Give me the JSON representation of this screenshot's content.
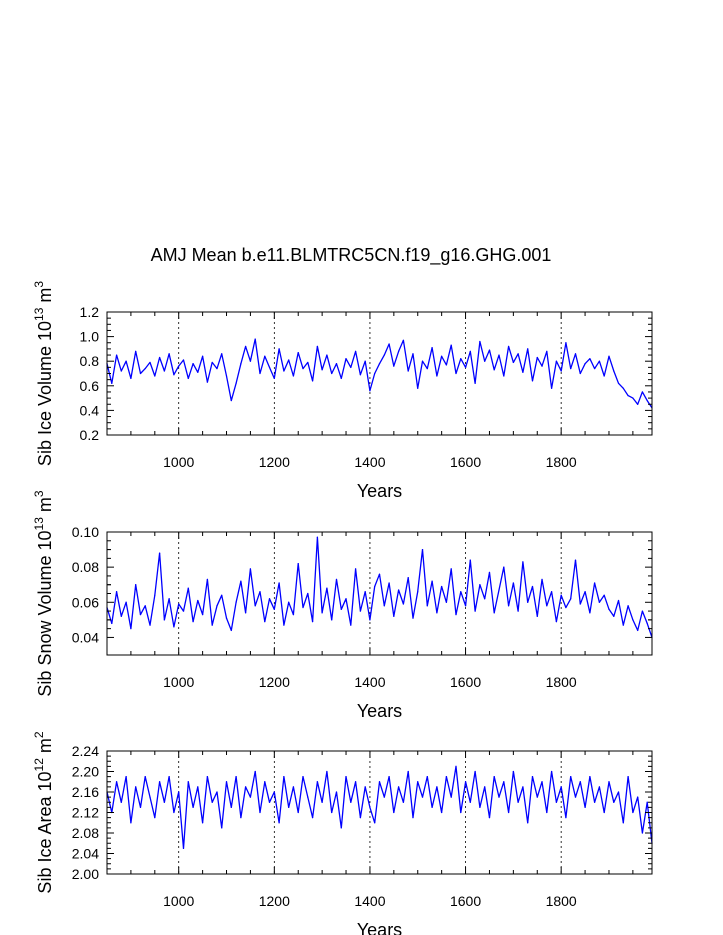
{
  "figure": {
    "title": "AMJ Mean b.e11.BLMTRC5CN.f19_g16.GHG.001"
  },
  "chart_data": [
    {
      "type": "line",
      "ylabel_main": "Sib Ice Volume 10",
      "ylabel_exp": "13",
      "ylabel_unit": " m",
      "ylabel_unit_exp": "3",
      "xlabel": "Years",
      "xlim": [
        850,
        1990
      ],
      "ylim": [
        0.2,
        1.2
      ],
      "yticks": [
        "0.2",
        "0.4",
        "0.6",
        "0.8",
        "1.0",
        "1.2"
      ],
      "ytick_values": [
        0.2,
        0.4,
        0.6,
        0.8,
        1.0,
        1.2
      ],
      "xticks": [
        "1000",
        "1200",
        "1400",
        "1600",
        "1800"
      ],
      "xtick_values": [
        1000,
        1200,
        1400,
        1600,
        1800
      ],
      "grid_x": true,
      "line_color": "#0000ff",
      "series": [
        {
          "x": [
            850,
            860,
            870,
            880,
            890,
            900,
            910,
            920,
            930,
            940,
            950,
            960,
            970,
            980,
            990,
            1000,
            1010,
            1020,
            1030,
            1040,
            1050,
            1060,
            1070,
            1080,
            1090,
            1100,
            1110,
            1120,
            1130,
            1140,
            1150,
            1160,
            1170,
            1180,
            1190,
            1200,
            1210,
            1220,
            1230,
            1240,
            1250,
            1260,
            1270,
            1280,
            1290,
            1300,
            1310,
            1320,
            1330,
            1340,
            1350,
            1360,
            1370,
            1380,
            1390,
            1400,
            1410,
            1420,
            1430,
            1440,
            1450,
            1460,
            1470,
            1480,
            1490,
            1500,
            1510,
            1520,
            1530,
            1540,
            1550,
            1560,
            1570,
            1580,
            1590,
            1600,
            1610,
            1620,
            1630,
            1640,
            1650,
            1660,
            1670,
            1680,
            1690,
            1700,
            1710,
            1720,
            1730,
            1740,
            1750,
            1760,
            1770,
            1780,
            1790,
            1800,
            1810,
            1820,
            1830,
            1840,
            1850,
            1860,
            1870,
            1880,
            1890,
            1900,
            1910,
            1920,
            1930,
            1940,
            1950,
            1960,
            1970,
            1980,
            1990
          ],
          "y": [
            0.78,
            0.62,
            0.85,
            0.72,
            0.8,
            0.66,
            0.88,
            0.7,
            0.74,
            0.79,
            0.68,
            0.83,
            0.72,
            0.86,
            0.69,
            0.76,
            0.81,
            0.66,
            0.78,
            0.71,
            0.84,
            0.63,
            0.79,
            0.74,
            0.86,
            0.68,
            0.48,
            0.62,
            0.78,
            0.92,
            0.8,
            0.98,
            0.7,
            0.84,
            0.75,
            0.66,
            0.9,
            0.72,
            0.81,
            0.68,
            0.87,
            0.74,
            0.79,
            0.64,
            0.92,
            0.73,
            0.85,
            0.7,
            0.78,
            0.66,
            0.82,
            0.75,
            0.88,
            0.69,
            0.8,
            0.56,
            0.7,
            0.78,
            0.85,
            0.94,
            0.76,
            0.88,
            0.97,
            0.72,
            0.86,
            0.58,
            0.8,
            0.74,
            0.91,
            0.68,
            0.84,
            0.77,
            0.93,
            0.7,
            0.82,
            0.75,
            0.88,
            0.62,
            0.96,
            0.8,
            0.89,
            0.73,
            0.85,
            0.68,
            0.92,
            0.79,
            0.86,
            0.71,
            0.9,
            0.64,
            0.83,
            0.76,
            0.88,
            0.58,
            0.8,
            0.72,
            0.95,
            0.74,
            0.86,
            0.7,
            0.78,
            0.82,
            0.74,
            0.8,
            0.68,
            0.84,
            0.72,
            0.62,
            0.58,
            0.52,
            0.5,
            0.45,
            0.55,
            0.48,
            0.42
          ]
        }
      ]
    },
    {
      "type": "line",
      "ylabel_main": "Sib Snow Volume 10",
      "ylabel_exp": "13",
      "ylabel_unit": " m",
      "ylabel_unit_exp": "3",
      "xlabel": "Years",
      "xlim": [
        850,
        1990
      ],
      "ylim": [
        0.03,
        0.1
      ],
      "yticks": [
        "0.04",
        "0.06",
        "0.08",
        "0.10"
      ],
      "ytick_values": [
        0.04,
        0.06,
        0.08,
        0.1
      ],
      "minor_yticks": [
        0.03,
        0.05,
        0.07,
        0.09
      ],
      "xticks": [
        "1000",
        "1200",
        "1400",
        "1600",
        "1800"
      ],
      "xtick_values": [
        1000,
        1200,
        1400,
        1600,
        1800
      ],
      "grid_x": true,
      "line_color": "#0000ff",
      "series": [
        {
          "x": [
            850,
            860,
            870,
            880,
            890,
            900,
            910,
            920,
            930,
            940,
            950,
            960,
            970,
            980,
            990,
            1000,
            1010,
            1020,
            1030,
            1040,
            1050,
            1060,
            1070,
            1080,
            1090,
            1100,
            1110,
            1120,
            1130,
            1140,
            1150,
            1160,
            1170,
            1180,
            1190,
            1200,
            1210,
            1220,
            1230,
            1240,
            1250,
            1260,
            1270,
            1280,
            1290,
            1300,
            1310,
            1320,
            1330,
            1340,
            1350,
            1360,
            1370,
            1380,
            1390,
            1400,
            1410,
            1420,
            1430,
            1440,
            1450,
            1460,
            1470,
            1480,
            1490,
            1500,
            1510,
            1520,
            1530,
            1540,
            1550,
            1560,
            1570,
            1580,
            1590,
            1600,
            1610,
            1620,
            1630,
            1640,
            1650,
            1660,
            1670,
            1680,
            1690,
            1700,
            1710,
            1720,
            1730,
            1740,
            1750,
            1760,
            1770,
            1780,
            1790,
            1800,
            1810,
            1820,
            1830,
            1840,
            1850,
            1860,
            1870,
            1880,
            1890,
            1900,
            1910,
            1920,
            1930,
            1940,
            1950,
            1960,
            1970,
            1980,
            1990
          ],
          "y": [
            0.057,
            0.048,
            0.066,
            0.052,
            0.06,
            0.045,
            0.07,
            0.053,
            0.058,
            0.047,
            0.064,
            0.088,
            0.05,
            0.062,
            0.046,
            0.059,
            0.055,
            0.068,
            0.049,
            0.061,
            0.053,
            0.073,
            0.047,
            0.058,
            0.064,
            0.051,
            0.044,
            0.06,
            0.072,
            0.054,
            0.079,
            0.058,
            0.066,
            0.049,
            0.062,
            0.056,
            0.071,
            0.047,
            0.06,
            0.053,
            0.082,
            0.057,
            0.065,
            0.049,
            0.097,
            0.054,
            0.068,
            0.05,
            0.073,
            0.056,
            0.062,
            0.047,
            0.079,
            0.055,
            0.066,
            0.05,
            0.069,
            0.076,
            0.058,
            0.071,
            0.052,
            0.067,
            0.059,
            0.074,
            0.051,
            0.066,
            0.09,
            0.058,
            0.072,
            0.054,
            0.069,
            0.06,
            0.079,
            0.053,
            0.066,
            0.058,
            0.084,
            0.055,
            0.07,
            0.062,
            0.077,
            0.054,
            0.067,
            0.08,
            0.058,
            0.071,
            0.055,
            0.083,
            0.06,
            0.069,
            0.052,
            0.073,
            0.058,
            0.066,
            0.049,
            0.064,
            0.057,
            0.062,
            0.084,
            0.059,
            0.066,
            0.054,
            0.071,
            0.06,
            0.064,
            0.056,
            0.052,
            0.061,
            0.047,
            0.058,
            0.05,
            0.044,
            0.055,
            0.048,
            0.04
          ]
        }
      ]
    },
    {
      "type": "line",
      "ylabel_main": "Sib Ice Area 10",
      "ylabel_exp": "12",
      "ylabel_unit": " m",
      "ylabel_unit_exp": "2",
      "xlabel": "Years",
      "xlim": [
        850,
        1990
      ],
      "ylim": [
        2.0,
        2.24
      ],
      "yticks": [
        "2.00",
        "2.04",
        "2.08",
        "2.12",
        "2.16",
        "2.20",
        "2.24"
      ],
      "ytick_values": [
        2.0,
        2.04,
        2.08,
        2.12,
        2.16,
        2.2,
        2.24
      ],
      "xticks": [
        "1000",
        "1200",
        "1400",
        "1600",
        "1800"
      ],
      "xtick_values": [
        1000,
        1200,
        1400,
        1600,
        1800
      ],
      "grid_x": true,
      "line_color": "#0000ff",
      "series": [
        {
          "x": [
            850,
            860,
            870,
            880,
            890,
            900,
            910,
            920,
            930,
            940,
            950,
            960,
            970,
            980,
            990,
            1000,
            1010,
            1020,
            1030,
            1040,
            1050,
            1060,
            1070,
            1080,
            1090,
            1100,
            1110,
            1120,
            1130,
            1140,
            1150,
            1160,
            1170,
            1180,
            1190,
            1200,
            1210,
            1220,
            1230,
            1240,
            1250,
            1260,
            1270,
            1280,
            1290,
            1300,
            1310,
            1320,
            1330,
            1340,
            1350,
            1360,
            1370,
            1380,
            1390,
            1400,
            1410,
            1420,
            1430,
            1440,
            1450,
            1460,
            1470,
            1480,
            1490,
            1500,
            1510,
            1520,
            1530,
            1540,
            1550,
            1560,
            1570,
            1580,
            1590,
            1600,
            1610,
            1620,
            1630,
            1640,
            1650,
            1660,
            1670,
            1680,
            1690,
            1700,
            1710,
            1720,
            1730,
            1740,
            1750,
            1760,
            1770,
            1780,
            1790,
            1800,
            1810,
            1820,
            1830,
            1840,
            1850,
            1860,
            1870,
            1880,
            1890,
            1900,
            1910,
            1920,
            1930,
            1940,
            1950,
            1960,
            1970,
            1980,
            1990
          ],
          "y": [
            2.16,
            2.12,
            2.18,
            2.14,
            2.19,
            2.1,
            2.17,
            2.13,
            2.19,
            2.15,
            2.11,
            2.18,
            2.14,
            2.19,
            2.12,
            2.16,
            2.05,
            2.18,
            2.13,
            2.17,
            2.1,
            2.19,
            2.14,
            2.16,
            2.09,
            2.18,
            2.13,
            2.19,
            2.11,
            2.17,
            2.15,
            2.2,
            2.12,
            2.18,
            2.14,
            2.16,
            2.1,
            2.19,
            2.13,
            2.17,
            2.12,
            2.19,
            2.15,
            2.11,
            2.18,
            2.14,
            2.2,
            2.12,
            2.16,
            2.09,
            2.19,
            2.14,
            2.18,
            2.11,
            2.17,
            2.13,
            2.1,
            2.18,
            2.15,
            2.19,
            2.12,
            2.17,
            2.14,
            2.2,
            2.11,
            2.18,
            2.15,
            2.19,
            2.13,
            2.17,
            2.12,
            2.19,
            2.15,
            2.21,
            2.12,
            2.18,
            2.14,
            2.2,
            2.13,
            2.17,
            2.11,
            2.19,
            2.15,
            2.18,
            2.12,
            2.2,
            2.14,
            2.17,
            2.1,
            2.19,
            2.15,
            2.18,
            2.12,
            2.2,
            2.14,
            2.17,
            2.11,
            2.19,
            2.15,
            2.18,
            2.13,
            2.19,
            2.14,
            2.17,
            2.12,
            2.18,
            2.14,
            2.16,
            2.1,
            2.19,
            2.12,
            2.15,
            2.08,
            2.14,
            2.06
          ]
        }
      ]
    }
  ]
}
